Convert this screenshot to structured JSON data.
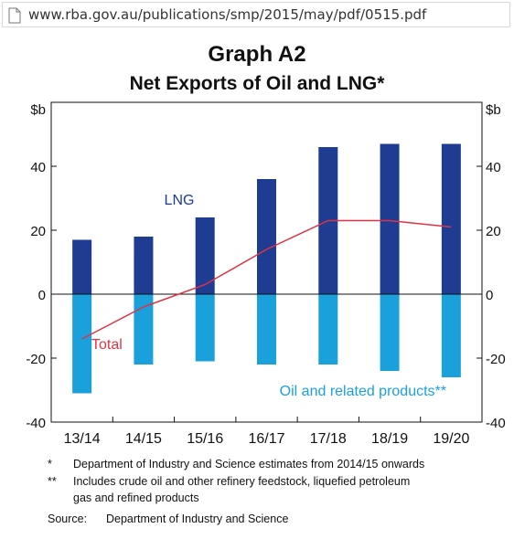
{
  "browser": {
    "url": "www.rba.gov.au/publications/smp/2015/may/pdf/0515.pdf"
  },
  "graph": {
    "title": "Graph A2",
    "subtitle": "Net Exports of Oil and LNG*"
  },
  "chart_data": {
    "type": "bar",
    "categories": [
      "13/14",
      "14/15",
      "15/16",
      "16/17",
      "17/18",
      "18/19",
      "19/20"
    ],
    "series": [
      {
        "name": "LNG",
        "kind": "bar",
        "color": "#1f3c93",
        "values": [
          17,
          18,
          24,
          36,
          46,
          47,
          47
        ]
      },
      {
        "name": "Oil and related products**",
        "kind": "bar",
        "color": "#1aa1dc",
        "values": [
          -31,
          -22,
          -21,
          -22,
          -22,
          -24,
          -26
        ]
      },
      {
        "name": "Total",
        "kind": "line",
        "color": "#e03342",
        "values": [
          -14,
          -4,
          3,
          14,
          23,
          23,
          21
        ]
      }
    ],
    "ylim": [
      -40,
      60
    ],
    "yticks": [
      -40,
      -20,
      0,
      20,
      40
    ],
    "ylabel_left": "$b",
    "ylabel_right": "$b",
    "grid": false
  },
  "footnotes": [
    {
      "mark": "*",
      "text": "Department of Industry and Science estimates from 2014/15 onwards"
    },
    {
      "mark": "**",
      "text_lines": [
        "Includes crude oil and other refinery feedstock, liquefied petroleum",
        "gas and refined products"
      ]
    }
  ],
  "source": {
    "label": "Source:",
    "text": "Department of Industry and Science"
  }
}
